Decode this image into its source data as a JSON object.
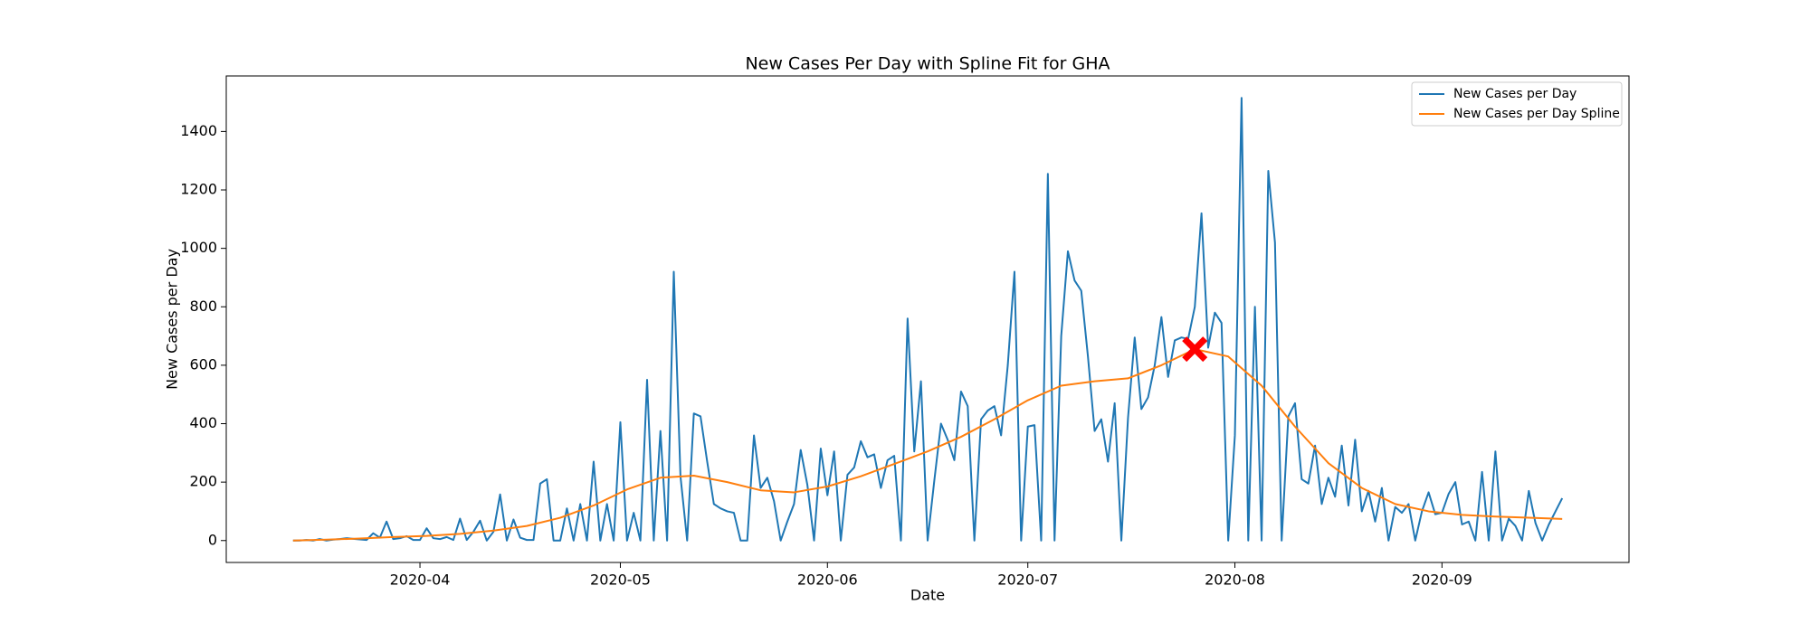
{
  "chart_data": {
    "type": "line",
    "title": "New Cases Per Day with Spline Fit for GHA",
    "x_label": "Date",
    "y_label": "New Cases per Day",
    "xlim": [
      "2020-03-03",
      "2020-09-29"
    ],
    "xticks": [
      {
        "value": "2020-04-01",
        "label": "2020-04"
      },
      {
        "value": "2020-05-01",
        "label": "2020-05"
      },
      {
        "value": "2020-06-01",
        "label": "2020-06"
      },
      {
        "value": "2020-07-01",
        "label": "2020-07"
      },
      {
        "value": "2020-08-01",
        "label": "2020-08"
      },
      {
        "value": "2020-09-01",
        "label": "2020-09"
      }
    ],
    "ylim": [
      -75,
      1590
    ],
    "yticks": [
      0,
      200,
      400,
      600,
      800,
      1000,
      1200,
      1400
    ],
    "grid": false,
    "legend": "upper right",
    "series": [
      {
        "name": "New Cases per Day",
        "color": "#1f77b4",
        "x": [
          "2020-03-13",
          "2020-03-14",
          "2020-03-15",
          "2020-03-16",
          "2020-03-17",
          "2020-03-18",
          "2020-03-19",
          "2020-03-20",
          "2020-03-21",
          "2020-03-22",
          "2020-03-23",
          "2020-03-24",
          "2020-03-25",
          "2020-03-26",
          "2020-03-27",
          "2020-03-28",
          "2020-03-29",
          "2020-03-30",
          "2020-03-31",
          "2020-04-01",
          "2020-04-02",
          "2020-04-03",
          "2020-04-04",
          "2020-04-05",
          "2020-04-06",
          "2020-04-07",
          "2020-04-08",
          "2020-04-09",
          "2020-04-10",
          "2020-04-11",
          "2020-04-12",
          "2020-04-13",
          "2020-04-14",
          "2020-04-15",
          "2020-04-16",
          "2020-04-17",
          "2020-04-18",
          "2020-04-19",
          "2020-04-20",
          "2020-04-21",
          "2020-04-22",
          "2020-04-23",
          "2020-04-24",
          "2020-04-25",
          "2020-04-26",
          "2020-04-27",
          "2020-04-28",
          "2020-04-29",
          "2020-04-30",
          "2020-05-01",
          "2020-05-02",
          "2020-05-03",
          "2020-05-04",
          "2020-05-05",
          "2020-05-06",
          "2020-05-07",
          "2020-05-08",
          "2020-05-09",
          "2020-05-10",
          "2020-05-11",
          "2020-05-12",
          "2020-05-13",
          "2020-05-14",
          "2020-05-15",
          "2020-05-16",
          "2020-05-17",
          "2020-05-18",
          "2020-05-19",
          "2020-05-20",
          "2020-05-21",
          "2020-05-22",
          "2020-05-23",
          "2020-05-24",
          "2020-05-25",
          "2020-05-26",
          "2020-05-27",
          "2020-05-28",
          "2020-05-29",
          "2020-05-30",
          "2020-05-31",
          "2020-06-01",
          "2020-06-02",
          "2020-06-03",
          "2020-06-04",
          "2020-06-05",
          "2020-06-06",
          "2020-06-07",
          "2020-06-08",
          "2020-06-09",
          "2020-06-10",
          "2020-06-11",
          "2020-06-12",
          "2020-06-13",
          "2020-06-14",
          "2020-06-15",
          "2020-06-16",
          "2020-06-17",
          "2020-06-18",
          "2020-06-19",
          "2020-06-20",
          "2020-06-21",
          "2020-06-22",
          "2020-06-23",
          "2020-06-24",
          "2020-06-25",
          "2020-06-26",
          "2020-06-27",
          "2020-06-28",
          "2020-06-29",
          "2020-06-30",
          "2020-07-01",
          "2020-07-02",
          "2020-07-03",
          "2020-07-04",
          "2020-07-05",
          "2020-07-06",
          "2020-07-07",
          "2020-07-08",
          "2020-07-09",
          "2020-07-10",
          "2020-07-11",
          "2020-07-12",
          "2020-07-13",
          "2020-07-14",
          "2020-07-15",
          "2020-07-16",
          "2020-07-17",
          "2020-07-18",
          "2020-07-19",
          "2020-07-20",
          "2020-07-21",
          "2020-07-22",
          "2020-07-23",
          "2020-07-24",
          "2020-07-25",
          "2020-07-26",
          "2020-07-27",
          "2020-07-28",
          "2020-07-29",
          "2020-07-30",
          "2020-07-31",
          "2020-08-01",
          "2020-08-02",
          "2020-08-03",
          "2020-08-04",
          "2020-08-05",
          "2020-08-06",
          "2020-08-07",
          "2020-08-08",
          "2020-08-09",
          "2020-08-10",
          "2020-08-11",
          "2020-08-12",
          "2020-08-13",
          "2020-08-14",
          "2020-08-15",
          "2020-08-16",
          "2020-08-17",
          "2020-08-18",
          "2020-08-19",
          "2020-08-20",
          "2020-08-21",
          "2020-08-22",
          "2020-08-23",
          "2020-08-24",
          "2020-08-25",
          "2020-08-26",
          "2020-08-27",
          "2020-08-28",
          "2020-08-29",
          "2020-08-30",
          "2020-08-31",
          "2020-09-01",
          "2020-09-02",
          "2020-09-03",
          "2020-09-04",
          "2020-09-05",
          "2020-09-06",
          "2020-09-07",
          "2020-09-08",
          "2020-09-09",
          "2020-09-10",
          "2020-09-11",
          "2020-09-12",
          "2020-09-13",
          "2020-09-14",
          "2020-09-15",
          "2020-09-16",
          "2020-09-17",
          "2020-09-18",
          "2020-09-19"
        ],
        "values": [
          0,
          0,
          2,
          0,
          5,
          0,
          3,
          5,
          8,
          6,
          4,
          2,
          25,
          10,
          65,
          5,
          8,
          15,
          2,
          2,
          42,
          8,
          5,
          12,
          2,
          75,
          2,
          30,
          68,
          0,
          30,
          158,
          0,
          72,
          10,
          2,
          2,
          195,
          210,
          0,
          0,
          110,
          0,
          125,
          0,
          270,
          0,
          125,
          0,
          405,
          0,
          95,
          0,
          550,
          0,
          375,
          0,
          920,
          220,
          0,
          435,
          425,
          270,
          125,
          110,
          100,
          95,
          0,
          0,
          360,
          180,
          215,
          135,
          0,
          65,
          125,
          310,
          190,
          0,
          315,
          155,
          305,
          0,
          225,
          250,
          340,
          285,
          295,
          180,
          275,
          290,
          0,
          760,
          305,
          545,
          0,
          205,
          400,
          345,
          275,
          510,
          460,
          0,
          415,
          445,
          460,
          360,
          600,
          920,
          0,
          390,
          395,
          0,
          1255,
          0,
          700,
          990,
          890,
          855,
          630,
          375,
          415,
          270,
          470,
          0,
          420,
          695,
          450,
          490,
          600,
          765,
          560,
          685,
          695,
          690,
          800,
          1120,
          660,
          780,
          745,
          0,
          360,
          1515,
          0,
          800,
          0,
          1265,
          1020,
          0,
          425,
          470,
          210,
          195,
          325,
          125,
          215,
          150,
          325,
          120,
          345,
          100,
          170,
          65,
          180,
          0,
          115,
          95,
          125,
          0,
          100,
          165,
          90,
          95,
          160,
          200,
          55,
          65,
          0,
          235,
          0,
          305,
          0,
          75,
          50,
          0,
          170,
          60,
          0,
          55,
          100,
          145
        ]
      },
      {
        "name": "New Cases per Day Spline",
        "color": "#ff7f0e",
        "x": [
          "2020-03-13",
          "2020-03-18",
          "2020-03-23",
          "2020-03-28",
          "2020-04-02",
          "2020-04-07",
          "2020-04-12",
          "2020-04-17",
          "2020-04-22",
          "2020-04-27",
          "2020-05-02",
          "2020-05-07",
          "2020-05-12",
          "2020-05-17",
          "2020-05-22",
          "2020-05-27",
          "2020-06-01",
          "2020-06-06",
          "2020-06-11",
          "2020-06-16",
          "2020-06-21",
          "2020-06-26",
          "2020-07-01",
          "2020-07-06",
          "2020-07-11",
          "2020-07-16",
          "2020-07-21",
          "2020-07-26",
          "2020-07-31",
          "2020-08-05",
          "2020-08-10",
          "2020-08-15",
          "2020-08-20",
          "2020-08-25",
          "2020-08-30",
          "2020-09-04",
          "2020-09-09",
          "2020-09-14",
          "2020-09-19"
        ],
        "values": [
          0,
          3,
          7,
          12,
          16,
          23,
          34,
          50,
          78,
          120,
          175,
          215,
          222,
          200,
          172,
          165,
          185,
          220,
          262,
          305,
          355,
          415,
          480,
          530,
          545,
          555,
          600,
          655,
          630,
          530,
          390,
          265,
          180,
          125,
          100,
          88,
          82,
          78,
          74
        ]
      }
    ],
    "marker": {
      "x": "2020-07-26",
      "y": 655,
      "color": "#ff0000"
    }
  }
}
